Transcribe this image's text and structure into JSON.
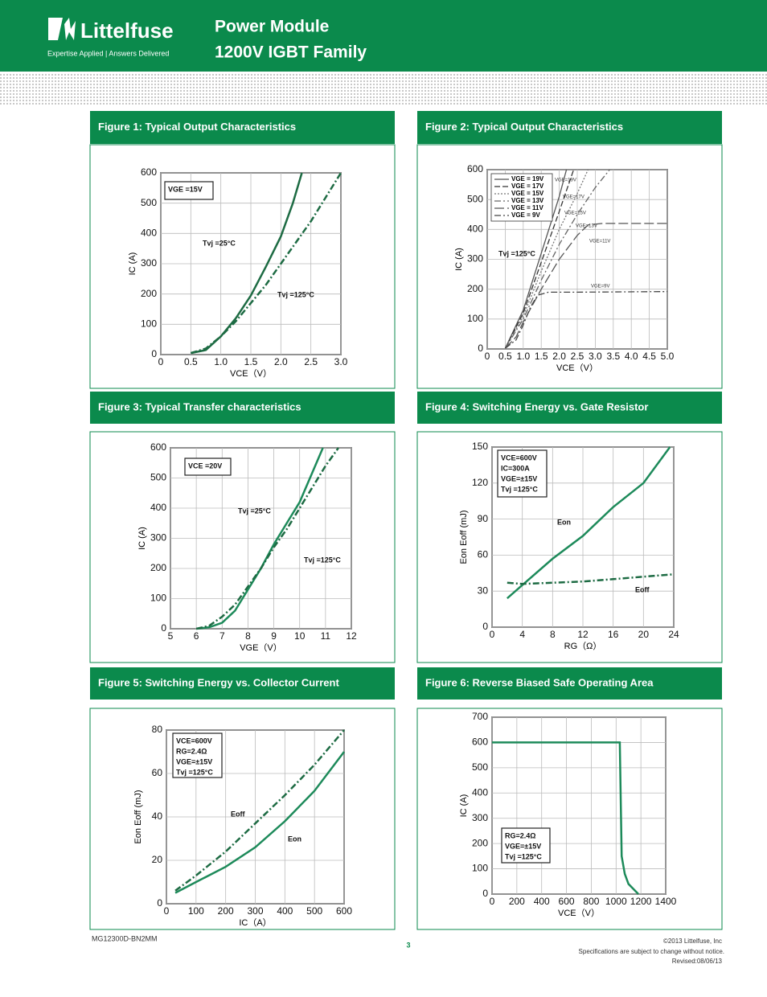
{
  "header": {
    "brand": "Littelfuse",
    "tagline": "Expertise Applied | Answers Delivered",
    "title_line1": "Power Module",
    "title_line2": "1200V IGBT Family"
  },
  "footer": {
    "part": "MG12300D-BN2MM",
    "page": "3",
    "copyright": "©2013 Littelfuse, Inc",
    "notice": "Specifications are subject to change without notice.",
    "revised": "Revised:08/06/13"
  },
  "chart_data": [
    {
      "type": "line",
      "title": "Figure 1: Typical Output Characteristics",
      "x_label": "VCE（V）",
      "y_label": "IC (A)",
      "xlim": [
        0,
        3
      ],
      "xticks": [
        0,
        0.5,
        {
          "value": 1,
          "label": "1.0"
        },
        1.5,
        {
          "value": 2,
          "label": "2.0"
        },
        2.5,
        {
          "value": 3,
          "label": "3.0"
        }
      ],
      "ylim": [
        0,
        600
      ],
      "yticks": [
        0,
        100,
        200,
        300,
        400,
        500,
        600
      ],
      "grid": true,
      "annotations": [
        "VGE =15V"
      ],
      "series": [
        {
          "name": "Tvj =25°C",
          "color": "#1d6b43",
          "style": "solid",
          "x": [
            0.5,
            0.75,
            1.0,
            1.25,
            1.5,
            1.75,
            2.0,
            2.2,
            2.35
          ],
          "values": [
            5,
            15,
            60,
            120,
            195,
            290,
            390,
            500,
            600
          ]
        },
        {
          "name": "Tvj =125°C",
          "color": "#1d6b43",
          "style": "dashdot",
          "x": [
            0.5,
            0.75,
            1.0,
            1.25,
            1.5,
            1.75,
            2.0,
            2.25,
            2.5,
            2.75,
            3.0
          ],
          "values": [
            5,
            20,
            60,
            110,
            170,
            230,
            300,
            370,
            440,
            520,
            600
          ]
        }
      ]
    },
    {
      "type": "line",
      "title": "Figure 2: Typical Output Characteristics",
      "x_label": "VCE（V）",
      "y_label": "IC (A)",
      "xlim": [
        0,
        5
      ],
      "xticks": [
        0,
        0.5,
        {
          "value": 1,
          "label": "1.0"
        },
        1.5,
        {
          "value": 2,
          "label": "2.0"
        },
        2.5,
        {
          "value": 3,
          "label": "3.0"
        },
        3.5,
        {
          "value": 4,
          "label": "4.0"
        },
        4.5,
        {
          "value": 5,
          "label": "5.0"
        }
      ],
      "ylim": [
        0,
        600
      ],
      "yticks": [
        0,
        100,
        200,
        300,
        400,
        500,
        600
      ],
      "grid": true,
      "legend": "upper left",
      "annotations": [
        "Tvj =125°C"
      ],
      "series": [
        {
          "name": "VGE = 19V",
          "label": "VGE=19V",
          "color": "#555555",
          "style": "solid",
          "x": [
            0.5,
            1.0,
            1.5,
            2.0,
            2.2
          ],
          "values": [
            2,
            130,
            320,
            510,
            600
          ]
        },
        {
          "name": "VGE = 17V",
          "label": "VGE=17V",
          "color": "#333333",
          "style": "dash",
          "x": [
            0.5,
            1.0,
            1.5,
            2.0,
            2.4
          ],
          "values": [
            2,
            120,
            290,
            460,
            600
          ]
        },
        {
          "name": "VGE = 15V",
          "label": "VGE=15V",
          "color": "#777777",
          "style": "dot",
          "x": [
            0.5,
            1.0,
            1.5,
            2.0,
            2.5,
            2.8
          ],
          "values": [
            2,
            110,
            260,
            400,
            520,
            600
          ]
        },
        {
          "name": "VGE = 13V",
          "label": "VGE=13V",
          "color": "#666666",
          "style": "dashdot",
          "x": [
            0.5,
            1.0,
            1.5,
            2.0,
            2.5,
            3.0,
            3.4
          ],
          "values": [
            2,
            100,
            230,
            350,
            450,
            540,
            600
          ]
        },
        {
          "name": "VGE = 11V",
          "label": "VGE=11V",
          "color": "#555555",
          "style": "longdash",
          "x": [
            0.5,
            0.8,
            1.0,
            1.5,
            2.0,
            2.5,
            2.8,
            3.2,
            5.0
          ],
          "values": [
            2,
            40,
            90,
            200,
            300,
            380,
            415,
            420,
            420
          ]
        },
        {
          "name": "VGE = 9V",
          "label": "VGE=9V",
          "color": "#444444",
          "style": "dashdot",
          "x": [
            0.5,
            0.8,
            1.0,
            1.2,
            1.4,
            1.7,
            2.5,
            5.0
          ],
          "values": [
            2,
            30,
            80,
            140,
            180,
            190,
            190,
            192
          ]
        }
      ]
    },
    {
      "type": "line",
      "title": "Figure 3: Typical Transfer characteristics",
      "x_label": "VGE（V）",
      "y_label": "IC (A)",
      "xlim": [
        5,
        12
      ],
      "xticks": [
        5,
        6,
        7,
        8,
        9,
        10,
        11,
        12
      ],
      "ylim": [
        0,
        600
      ],
      "yticks": [
        0,
        100,
        200,
        300,
        400,
        500,
        600
      ],
      "grid": true,
      "annotations": [
        "VCE =20V"
      ],
      "series": [
        {
          "name": "Tvj =25°C",
          "color": "#1d8a5a",
          "style": "solid",
          "x": [
            6,
            6.5,
            7,
            7.5,
            8,
            8.5,
            9,
            9.5,
            10,
            10.5,
            10.9
          ],
          "values": [
            0,
            5,
            20,
            60,
            130,
            200,
            280,
            350,
            420,
            520,
            600
          ]
        },
        {
          "name": "Tvj =125°C",
          "color": "#1d6b43",
          "style": "dashdot",
          "x": [
            6,
            6.5,
            7,
            7.5,
            8,
            8.5,
            9,
            9.5,
            10,
            10.5,
            11,
            11.5
          ],
          "values": [
            0,
            10,
            40,
            80,
            140,
            200,
            270,
            330,
            400,
            470,
            540,
            600
          ]
        }
      ]
    },
    {
      "type": "line",
      "title": "Figure 4: Switching Energy vs. Gate Resistor",
      "x_label": "RG（Ω）",
      "y_label": "Eon Eoff (mJ)",
      "xlim": [
        0,
        24
      ],
      "xticks": [
        0,
        4,
        8,
        12,
        16,
        20,
        24
      ],
      "ylim": [
        0,
        150
      ],
      "yticks": [
        0,
        30,
        60,
        90,
        120,
        150
      ],
      "grid": true,
      "annotations": [
        "VCE=600V",
        "IC=300A",
        "VGE=±15V",
        "Tvj =125°C"
      ],
      "series": [
        {
          "name": "Eon",
          "color": "#1d8a5a",
          "style": "solid",
          "x": [
            2,
            4,
            8,
            12,
            16,
            20,
            23.5
          ],
          "values": [
            24,
            35,
            57,
            76,
            100,
            120,
            150
          ]
        },
        {
          "name": "Eoff",
          "color": "#1d6b43",
          "style": "dashdot",
          "x": [
            2,
            4,
            8,
            12,
            16,
            20,
            24
          ],
          "values": [
            37,
            36,
            37,
            38,
            40,
            42,
            44
          ]
        }
      ]
    },
    {
      "type": "line",
      "title": "Figure 5: Switching Energy vs. Collector Current",
      "x_label": "IC（A）",
      "y_label": "Eon Eoff (mJ)",
      "xlim": [
        0,
        600
      ],
      "xticks": [
        0,
        100,
        200,
        300,
        400,
        500,
        600
      ],
      "ylim": [
        0,
        80
      ],
      "yticks": [
        0,
        20,
        40,
        60,
        80
      ],
      "grid": true,
      "annotations": [
        "VCE=600V",
        "RG=2.4Ω",
        "VGE=±15V",
        "Tvj =125°C"
      ],
      "series": [
        {
          "name": "Eoff",
          "color": "#1d6b43",
          "style": "dashdot",
          "x": [
            30,
            100,
            200,
            300,
            400,
            500,
            600
          ],
          "values": [
            6,
            13,
            24,
            37,
            50,
            64,
            80
          ]
        },
        {
          "name": "Eon",
          "color": "#1d8a5a",
          "style": "solid",
          "x": [
            30,
            100,
            200,
            300,
            400,
            500,
            600
          ],
          "values": [
            5,
            10,
            17,
            26,
            38,
            52,
            70
          ]
        }
      ]
    },
    {
      "type": "line",
      "title": "Figure 6: Reverse Biased Safe Operating Area",
      "x_label": "VCE（V）",
      "y_label": "IC (A)",
      "xlim": [
        0,
        1400
      ],
      "xticks": [
        0,
        200,
        400,
        600,
        800,
        1000,
        1200,
        1400
      ],
      "ylim": [
        0,
        700
      ],
      "yticks": [
        0,
        100,
        200,
        300,
        400,
        500,
        600,
        700
      ],
      "grid": true,
      "annotations": [
        "RG=2.4Ω",
        "VGE=±15V",
        "Tvj =125°C"
      ],
      "series": [
        {
          "color": "#1d8a5a",
          "style": "solid",
          "x": [
            0,
            1030,
            1045,
            1070,
            1100,
            1180
          ],
          "values": [
            600,
            600,
            150,
            80,
            40,
            0
          ]
        }
      ]
    }
  ]
}
